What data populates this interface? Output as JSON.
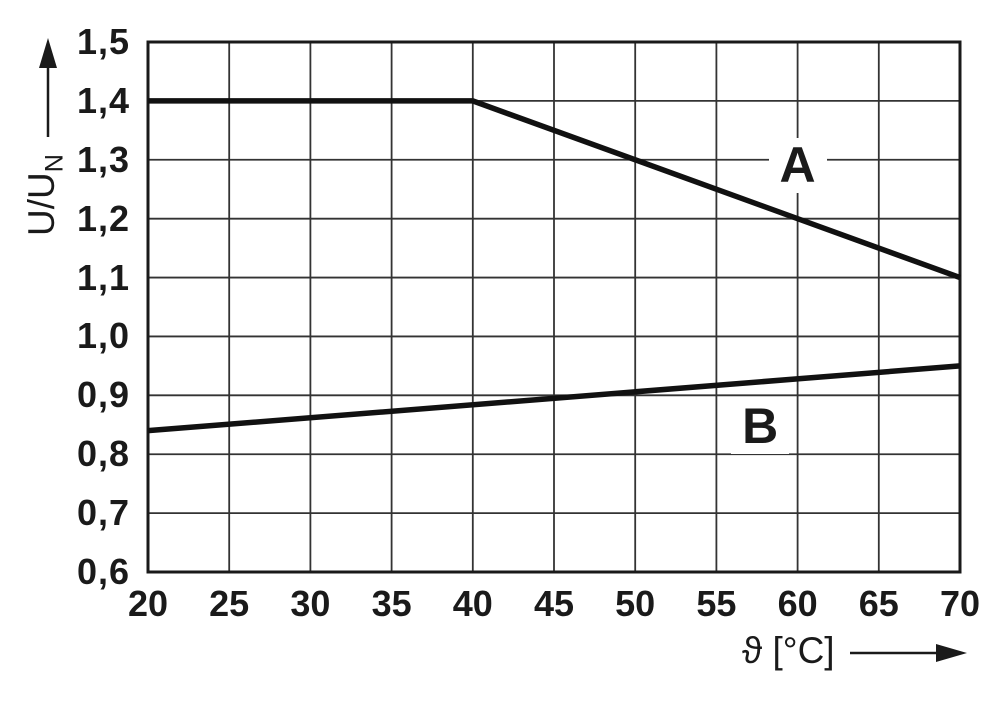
{
  "chart_data": {
    "type": "line",
    "title": "",
    "xlabel": "ϑ [°C]",
    "ylabel": "U/U_N",
    "ylabel_main": "U/U",
    "ylabel_sub": "N",
    "xlim": [
      20,
      70
    ],
    "ylim": [
      0.6,
      1.5
    ],
    "grid": true,
    "x_ticks": [
      20,
      25,
      30,
      35,
      40,
      45,
      50,
      55,
      60,
      65,
      70
    ],
    "x_tick_labels": [
      "20",
      "25",
      "30",
      "35",
      "40",
      "45",
      "50",
      "55",
      "60",
      "65",
      "70"
    ],
    "y_ticks": [
      1.5,
      1.4,
      1.3,
      1.2,
      1.1,
      1.0,
      0.9,
      0.8,
      0.7,
      0.6
    ],
    "y_tick_labels": [
      "1,5",
      "1,4",
      "1,3",
      "1,2",
      "1,1",
      "1,0",
      "0,9",
      "0,8",
      "0,7",
      "0,6"
    ],
    "series": [
      {
        "name": "A",
        "points": [
          [
            20,
            1.4
          ],
          [
            40,
            1.4
          ],
          [
            70,
            1.1
          ]
        ],
        "label_pos": [
          60,
          1.29
        ]
      },
      {
        "name": "B",
        "points": [
          [
            20,
            0.84
          ],
          [
            70,
            0.95
          ]
        ],
        "label_pos": [
          57.7,
          0.846
        ]
      }
    ],
    "colors": {
      "background": "#ffffff",
      "line": "#111111",
      "grid": "#333333",
      "border": "#1a1a1a",
      "text": "#1a1a1a"
    }
  }
}
